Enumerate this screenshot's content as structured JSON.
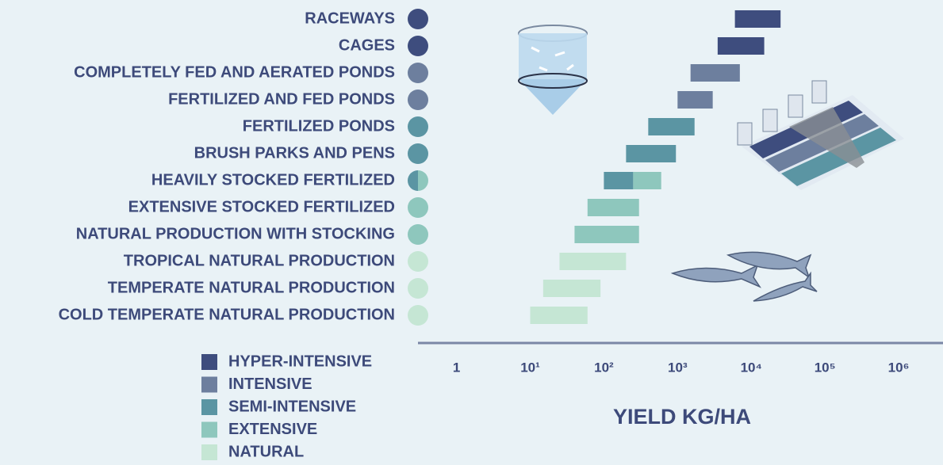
{
  "chart_data": {
    "type": "floating-bar",
    "orientation": "horizontal",
    "xlabel": "YIELD KG/HA",
    "xscale": "log",
    "xlim": [
      0.3,
      4000000
    ],
    "xticks": [
      1,
      {
        "value": 10,
        "label": "10¹"
      },
      {
        "value": 100,
        "label": "10²"
      },
      {
        "value": 1000,
        "label": "10³"
      },
      {
        "value": 10000,
        "label": "10⁴"
      },
      {
        "value": 100000,
        "label": "10⁵"
      },
      {
        "value": 1000000,
        "label": "10⁶"
      }
    ],
    "categories": [
      "RACEWAYS",
      "CAGES",
      "COMPLETELY FED AND AERATED PONDS",
      "FERTILIZED AND FED PONDS",
      "FERTILIZED PONDS",
      "BRUSH PARKS AND PENS",
      "HEAVILY STOCKED FERTILIZED",
      "EXTENSIVE STOCKED FERTILIZED",
      "NATURAL PRODUCTION WITH STOCKING",
      "TROPICAL NATURAL PRODUCTION",
      "TEMPERATE NATURAL PRODUCTION",
      "COLD TEMPERATE NATURAL PRODUCTION"
    ],
    "series": [
      {
        "name": "HYPER-INTENSIVE",
        "color": "#3e4d7e",
        "values": [
          [
            6000,
            25000
          ],
          [
            3500,
            15000
          ],
          null,
          null,
          null,
          null,
          null,
          null,
          null,
          null,
          null,
          null
        ]
      },
      {
        "name": "INTENSIVE",
        "color": "#6d7f9e",
        "values": [
          null,
          null,
          [
            1500,
            7000
          ],
          [
            1000,
            3000
          ],
          null,
          null,
          null,
          null,
          null,
          null,
          null,
          null
        ]
      },
      {
        "name": "SEMI-INTENSIVE",
        "color": "#5b95a3",
        "values": [
          null,
          null,
          null,
          null,
          [
            400,
            1700
          ],
          [
            200,
            950
          ],
          [
            100,
            250
          ],
          null,
          null,
          null,
          null,
          null
        ]
      },
      {
        "name": "EXTENSIVE",
        "color": "#8ec7bd",
        "values": [
          null,
          null,
          null,
          null,
          null,
          null,
          [
            250,
            600
          ],
          [
            60,
            300
          ],
          [
            40,
            300
          ],
          null,
          null,
          null
        ]
      },
      {
        "name": "NATURAL",
        "color": "#c5e6d4",
        "values": [
          null,
          null,
          null,
          null,
          null,
          null,
          null,
          null,
          null,
          [
            25,
            200
          ],
          [
            15,
            90
          ],
          [
            10,
            60
          ]
        ]
      }
    ],
    "legend": "bottom-left"
  }
}
